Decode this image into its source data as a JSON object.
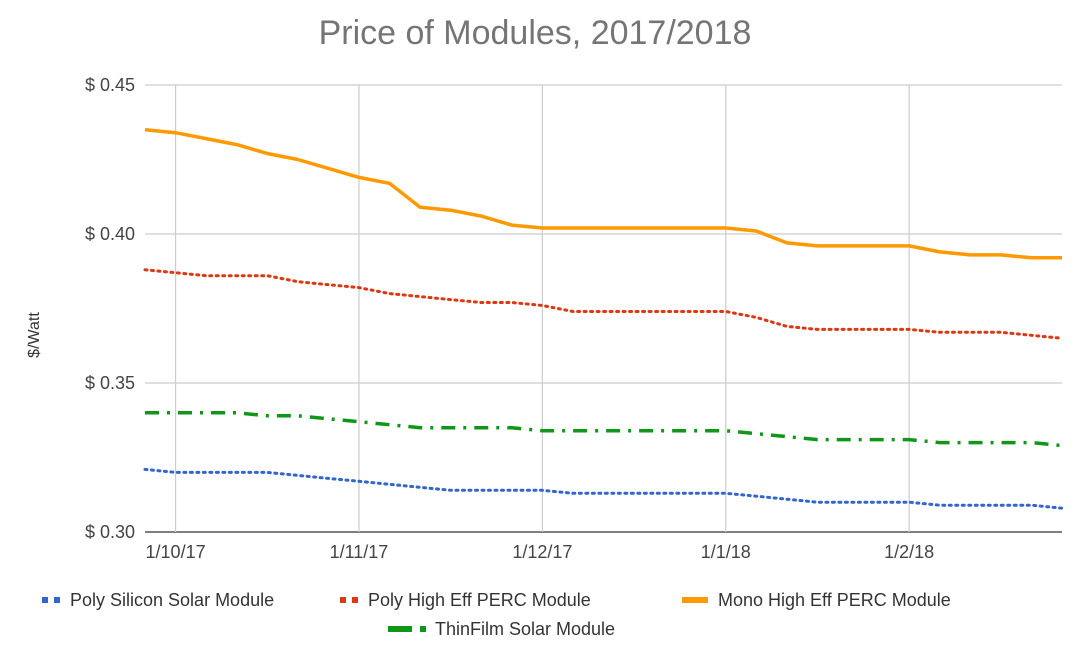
{
  "chart_data": {
    "type": "line",
    "title": "Price of Modules, 2017/2018",
    "ylabel": "$/Watt",
    "xlabel": "",
    "ylim": [
      0.3,
      0.45
    ],
    "yticks": [
      {
        "value": 0.3,
        "label": "$ 0.30"
      },
      {
        "value": 0.35,
        "label": "$ 0.35"
      },
      {
        "value": 0.4,
        "label": "$ 0.40"
      },
      {
        "value": 0.45,
        "label": "$ 0.45"
      }
    ],
    "xticks": [
      {
        "value": 1,
        "label": "1/10/17"
      },
      {
        "value": 7,
        "label": "1/11/17"
      },
      {
        "value": 13,
        "label": "1/12/17"
      },
      {
        "value": 19,
        "label": "1/1/18"
      },
      {
        "value": 25,
        "label": "1/2/18"
      }
    ],
    "xlim": [
      0,
      30
    ],
    "x": [
      0,
      1,
      2,
      3,
      4,
      5,
      6,
      7,
      8,
      9,
      10,
      11,
      12,
      13,
      14,
      15,
      16,
      17,
      18,
      19,
      20,
      21,
      22,
      23,
      24,
      25,
      26,
      27,
      28,
      29,
      30
    ],
    "grid": true,
    "legend_position": "bottom",
    "series": [
      {
        "name": "Poly Silicon Solar Module",
        "color": "#3366cc",
        "dash": "dotted",
        "values": [
          0.321,
          0.32,
          0.32,
          0.32,
          0.32,
          0.319,
          0.318,
          0.317,
          0.316,
          0.315,
          0.314,
          0.314,
          0.314,
          0.314,
          0.313,
          0.313,
          0.313,
          0.313,
          0.313,
          0.313,
          0.312,
          0.311,
          0.31,
          0.31,
          0.31,
          0.31,
          0.309,
          0.309,
          0.309,
          0.309,
          0.308
        ]
      },
      {
        "name": "Poly High Eff PERC Module",
        "color": "#dc3912",
        "dash": "dotted",
        "values": [
          0.388,
          0.387,
          0.386,
          0.386,
          0.386,
          0.384,
          0.383,
          0.382,
          0.38,
          0.379,
          0.378,
          0.377,
          0.377,
          0.376,
          0.374,
          0.374,
          0.374,
          0.374,
          0.374,
          0.374,
          0.372,
          0.369,
          0.368,
          0.368,
          0.368,
          0.368,
          0.367,
          0.367,
          0.367,
          0.366,
          0.365
        ]
      },
      {
        "name": "Mono High Eff PERC Module",
        "color": "#ff9900",
        "dash": "solid",
        "values": [
          0.435,
          0.434,
          0.432,
          0.43,
          0.427,
          0.425,
          0.422,
          0.419,
          0.417,
          0.409,
          0.408,
          0.406,
          0.403,
          0.402,
          0.402,
          0.402,
          0.402,
          0.402,
          0.402,
          0.402,
          0.401,
          0.397,
          0.396,
          0.396,
          0.396,
          0.396,
          0.394,
          0.393,
          0.393,
          0.392,
          0.392
        ]
      },
      {
        "name": "ThinFilm Solar Module",
        "color": "#109618",
        "dash": "dashdot",
        "values": [
          0.34,
          0.34,
          0.34,
          0.34,
          0.339,
          0.339,
          0.338,
          0.337,
          0.336,
          0.335,
          0.335,
          0.335,
          0.335,
          0.334,
          0.334,
          0.334,
          0.334,
          0.334,
          0.334,
          0.334,
          0.333,
          0.332,
          0.331,
          0.331,
          0.331,
          0.331,
          0.33,
          0.33,
          0.33,
          0.33,
          0.329
        ]
      }
    ]
  }
}
